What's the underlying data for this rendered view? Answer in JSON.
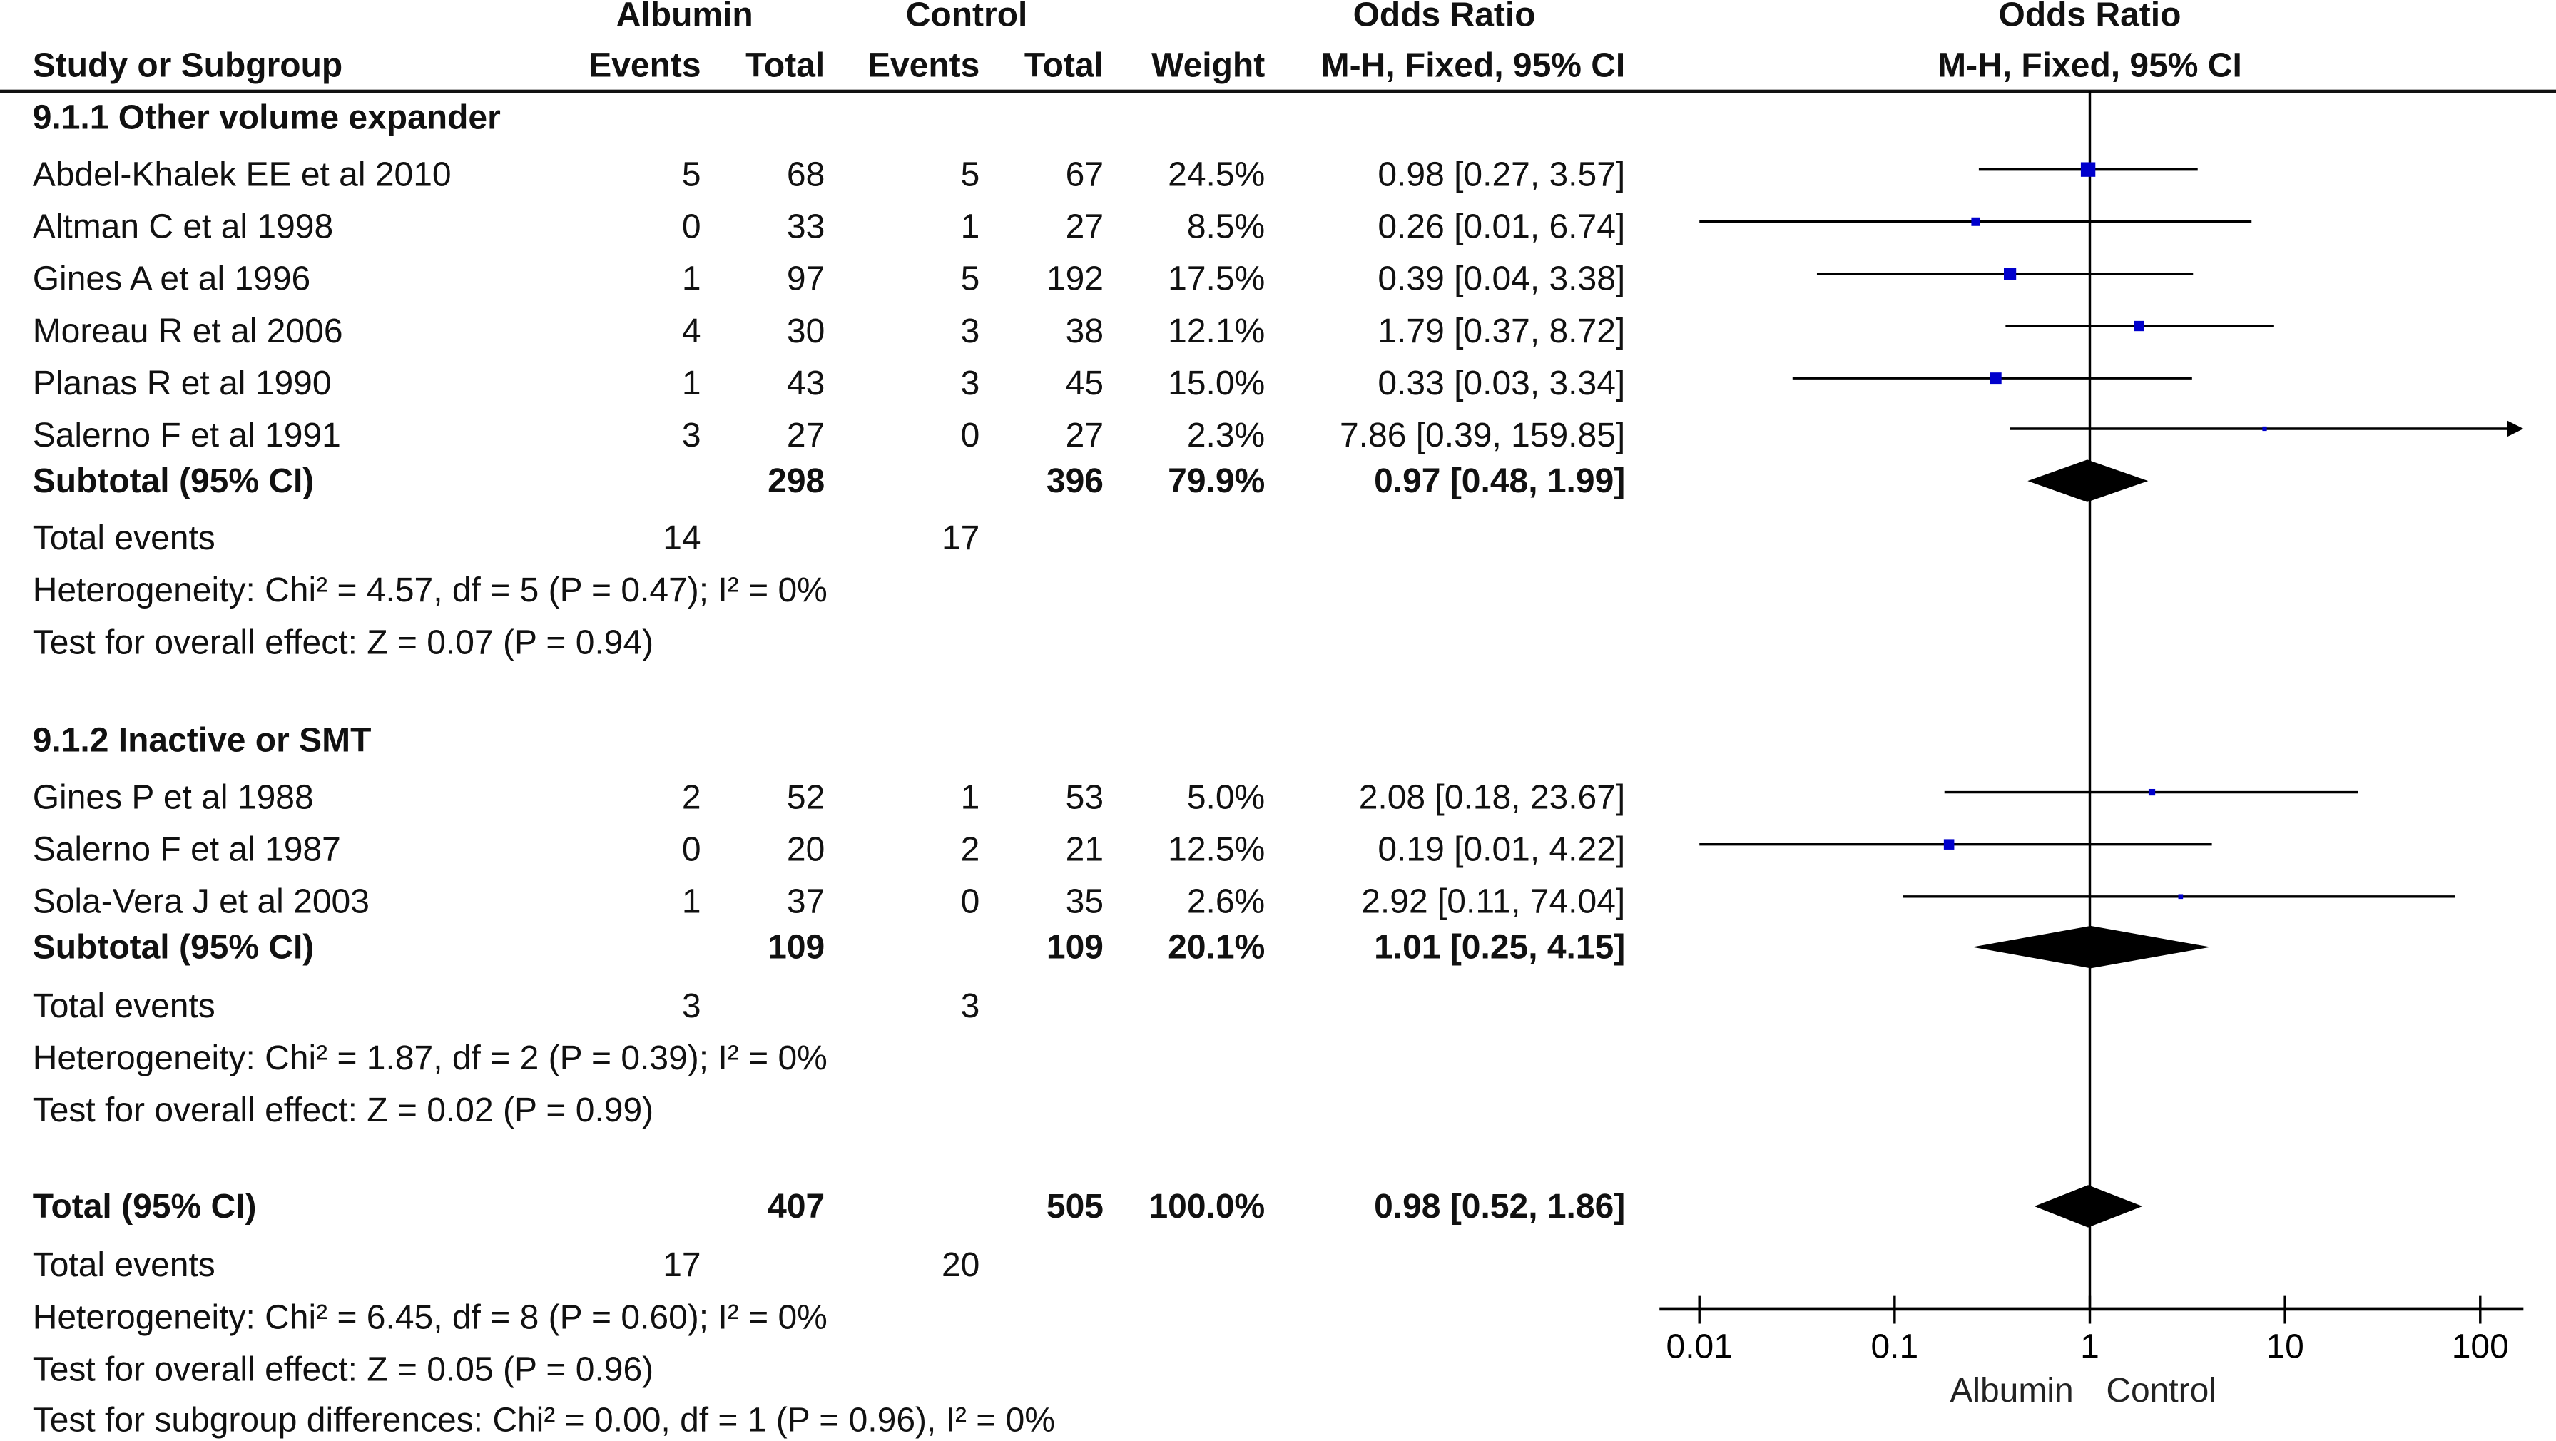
{
  "header": {
    "group_albumin": "Albumin",
    "group_control": "Control",
    "group_or": "Odds Ratio",
    "group_plot": "Odds Ratio",
    "col_study": "Study or Subgroup",
    "col_a_events": "Events",
    "col_a_total": "Total",
    "col_c_events": "Events",
    "col_c_total": "Total",
    "col_weight": "Weight",
    "col_or": "M-H, Fixed, 95% CI",
    "col_plot": "M-H, Fixed, 95% CI"
  },
  "sections": [
    {
      "title": "9.1.1 Other volume expander",
      "studies": [
        {
          "name": "Abdel-Khalek EE et al 2010",
          "a_events": "5",
          "a_total": "68",
          "c_events": "5",
          "c_total": "67",
          "weight": "24.5%",
          "or_ci": "0.98 [0.27, 3.57]"
        },
        {
          "name": "Altman C et al 1998",
          "a_events": "0",
          "a_total": "33",
          "c_events": "1",
          "c_total": "27",
          "weight": "8.5%",
          "or_ci": "0.26 [0.01, 6.74]"
        },
        {
          "name": "Gines A et al 1996",
          "a_events": "1",
          "a_total": "97",
          "c_events": "5",
          "c_total": "192",
          "weight": "17.5%",
          "or_ci": "0.39 [0.04, 3.38]"
        },
        {
          "name": "Moreau R et al 2006",
          "a_events": "4",
          "a_total": "30",
          "c_events": "3",
          "c_total": "38",
          "weight": "12.1%",
          "or_ci": "1.79 [0.37, 8.72]"
        },
        {
          "name": "Planas R et al 1990",
          "a_events": "1",
          "a_total": "43",
          "c_events": "3",
          "c_total": "45",
          "weight": "15.0%",
          "or_ci": "0.33 [0.03, 3.34]"
        },
        {
          "name": "Salerno F et al 1991",
          "a_events": "3",
          "a_total": "27",
          "c_events": "0",
          "c_total": "27",
          "weight": "2.3%",
          "or_ci": "7.86 [0.39, 159.85]"
        }
      ],
      "subtotal": {
        "label": "Subtotal (95% CI)",
        "a_total": "298",
        "c_total": "396",
        "weight": "79.9%",
        "or_ci": "0.97 [0.48, 1.99]"
      },
      "total_events": {
        "label": "Total events",
        "a": "14",
        "c": "17"
      },
      "heterogeneity": "Heterogeneity: Chi² = 4.57, df = 5 (P = 0.47); I² = 0%",
      "overall_effect": "Test for overall effect: Z = 0.07 (P = 0.94)"
    },
    {
      "title": "9.1.2 Inactive or SMT",
      "studies": [
        {
          "name": "Gines P et al 1988",
          "a_events": "2",
          "a_total": "52",
          "c_events": "1",
          "c_total": "53",
          "weight": "5.0%",
          "or_ci": "2.08 [0.18, 23.67]"
        },
        {
          "name": "Salerno F et al 1987",
          "a_events": "0",
          "a_total": "20",
          "c_events": "2",
          "c_total": "21",
          "weight": "12.5%",
          "or_ci": "0.19 [0.01, 4.22]"
        },
        {
          "name": "Sola-Vera J et al 2003",
          "a_events": "1",
          "a_total": "37",
          "c_events": "0",
          "c_total": "35",
          "weight": "2.6%",
          "or_ci": "2.92 [0.11, 74.04]"
        }
      ],
      "subtotal": {
        "label": "Subtotal (95% CI)",
        "a_total": "109",
        "c_total": "109",
        "weight": "20.1%",
        "or_ci": "1.01 [0.25, 4.15]"
      },
      "total_events": {
        "label": "Total events",
        "a": "3",
        "c": "3"
      },
      "heterogeneity": "Heterogeneity: Chi² = 1.87, df = 2 (P = 0.39); I² = 0%",
      "overall_effect": "Test for overall effect: Z = 0.02 (P = 0.99)"
    }
  ],
  "total": {
    "label": "Total (95% CI)",
    "a_total": "407",
    "c_total": "505",
    "weight": "100.0%",
    "or_ci": "0.98 [0.52, 1.86]",
    "total_events": {
      "label": "Total events",
      "a": "17",
      "c": "20"
    },
    "heterogeneity": "Heterogeneity: Chi² = 6.45, df = 8 (P = 0.60); I² = 0%",
    "overall_effect": "Test for overall effect: Z = 0.05 (P = 0.96)",
    "subgroup_differences": "Test for subgroup differences: Chi² = 0.00, df = 1 (P = 0.96), I² = 0%"
  },
  "chart_data": {
    "type": "forest",
    "scale": "log",
    "xlim": [
      0.01,
      100
    ],
    "ticks": [
      "0.01",
      "0.1",
      "1",
      "10",
      "100"
    ],
    "tick_values": [
      0.01,
      0.1,
      1,
      10,
      100
    ],
    "favours_left": "Albumin",
    "favours_right": "Control",
    "marker_color": "#0000cc",
    "diamond_color": "#000000",
    "groups": [
      {
        "studies": [
          {
            "or": 0.98,
            "lo": 0.27,
            "hi": 3.57,
            "weight": 24.5
          },
          {
            "or": 0.26,
            "lo": 0.01,
            "hi": 6.74,
            "weight": 8.5
          },
          {
            "or": 0.39,
            "lo": 0.04,
            "hi": 3.38,
            "weight": 17.5
          },
          {
            "or": 1.79,
            "lo": 0.37,
            "hi": 8.72,
            "weight": 12.1
          },
          {
            "or": 0.33,
            "lo": 0.03,
            "hi": 3.34,
            "weight": 15.0
          },
          {
            "or": 7.86,
            "lo": 0.39,
            "hi": 159.85,
            "weight": 2.3
          }
        ],
        "subtotal": {
          "or": 0.97,
          "lo": 0.48,
          "hi": 1.99
        }
      },
      {
        "studies": [
          {
            "or": 2.08,
            "lo": 0.18,
            "hi": 23.67,
            "weight": 5.0
          },
          {
            "or": 0.19,
            "lo": 0.01,
            "hi": 4.22,
            "weight": 12.5
          },
          {
            "or": 2.92,
            "lo": 0.11,
            "hi": 74.04,
            "weight": 2.6
          }
        ],
        "subtotal": {
          "or": 1.01,
          "lo": 0.25,
          "hi": 4.15
        }
      }
    ],
    "overall": {
      "or": 0.98,
      "lo": 0.52,
      "hi": 1.86
    }
  }
}
